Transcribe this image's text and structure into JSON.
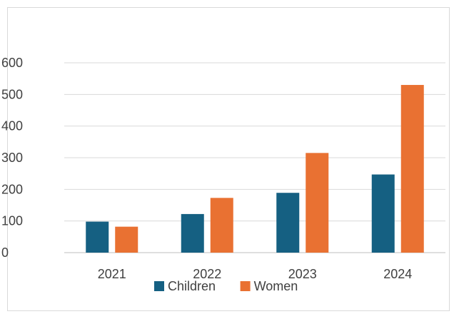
{
  "chart_data": {
    "type": "bar",
    "categories": [
      "2021",
      "2022",
      "2023",
      "2024"
    ],
    "series": [
      {
        "name": "Children",
        "values": [
          98,
          122,
          189,
          247
        ],
        "color": "#156082"
      },
      {
        "name": "Women",
        "values": [
          82,
          173,
          315,
          530
        ],
        "color": "#E97132"
      }
    ],
    "ylim": [
      0,
      600
    ],
    "yticks": [
      0,
      100,
      200,
      300,
      400,
      500,
      600
    ],
    "grid": true,
    "legend": "bottom",
    "title": "",
    "xlabel": "",
    "ylabel": ""
  }
}
